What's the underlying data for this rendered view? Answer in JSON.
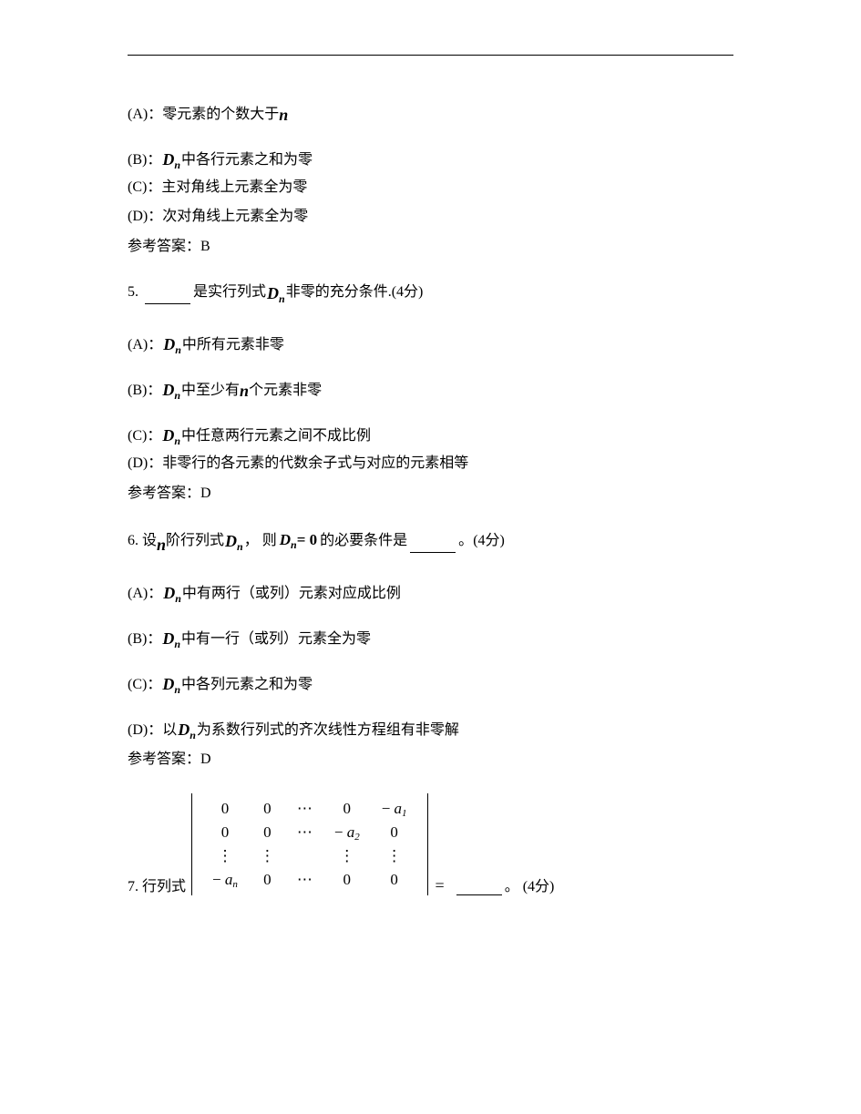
{
  "colors": {
    "text": "#000000",
    "bg": "#ffffff",
    "rule": "#000000"
  },
  "fontsize": {
    "body": 16,
    "math": 18,
    "sub": 12
  },
  "q4_continued": {
    "A": {
      "label": "(A)：",
      "before": "零元素的个数大于 ",
      "sym": "n"
    },
    "B": {
      "label": "(B)：",
      "sym": "D",
      "sub": "n",
      "after": " 中各行元素之和为零"
    },
    "C": {
      "label": "(C)：",
      "text": "主对角线上元素全为零"
    },
    "D": {
      "label": "(D)：",
      "text": "次对角线上元素全为零"
    },
    "answer_label": "参考答案：",
    "answer": "B"
  },
  "q5": {
    "num": "5. ",
    "before_blank": "",
    "mid1": "是实行列式",
    "sym": "D",
    "sub": "n",
    "mid2": " 非零的充分条件.",
    "points": "(4分)",
    "A": {
      "label": "(A)：",
      "sym": "D",
      "sub": "n",
      "after": " 中所有元素非零"
    },
    "B": {
      "label": "(B)：",
      "sym": "D",
      "sub": "n",
      "mid": " 中至少有 ",
      "sym2": "n",
      "after": " 个元素非零"
    },
    "C": {
      "label": "(C)：",
      "sym": "D",
      "sub": "n",
      "after": " 中任意两行元素之间不成比例"
    },
    "D": {
      "label": "(D)：",
      "text": "非零行的各元素的代数余子式与对应的元素相等"
    },
    "answer_label": "参考答案：",
    "answer": "D"
  },
  "q6": {
    "num": "6. ",
    "t1": "设 ",
    "sym_n": "n",
    "t2": " 阶行列式",
    "symD": "D",
    "subn": "n",
    "t3": "， 则",
    "eq_lhs_sym": "D",
    "eq_lhs_sub": "n",
    "eq_rhs": " = 0",
    "t4": " 的必要条件是",
    "t5": "。",
    "points": "(4分)",
    "A": {
      "label": "(A)：",
      "sym": "D",
      "sub": "n",
      "after": " 中有两行（或列）元素对应成比例"
    },
    "B": {
      "label": "(B)：",
      "sym": "D",
      "sub": "n",
      "after": " 中有一行（或列）元素全为零"
    },
    "C": {
      "label": "(C)：",
      "sym": "D",
      "sub": "n",
      "after": " 中各列元素之和为零"
    },
    "D": {
      "label": "(D)：",
      "pre": "以",
      "sym": "D",
      "sub": "n",
      "after": " 为系数行列式的齐次线性方程组有非零解"
    },
    "answer_label": "参考答案：",
    "answer": "D"
  },
  "q7": {
    "num": "7. ",
    "t1": "行列式",
    "matrix": {
      "rows": [
        [
          "0",
          "0",
          "⋯",
          "0",
          "-a₁|−a<sub>1</sub>"
        ],
        [
          "0",
          "0",
          "⋯",
          "-a₂|−a<sub>2</sub>",
          "0"
        ],
        [
          "⋮",
          "⋮",
          "",
          "⋮",
          "⋮"
        ],
        [
          "-aₙ|−a<sub>n</sub>",
          "0",
          "⋯",
          "0",
          "0"
        ]
      ],
      "display": [
        [
          {
            "t": "0"
          },
          {
            "t": "0"
          },
          {
            "t": "⋯"
          },
          {
            "t": "0"
          },
          {
            "html": "− <span class='it'>a</span><span class='s'>1</span>"
          }
        ],
        [
          {
            "t": "0"
          },
          {
            "t": "0"
          },
          {
            "t": "⋯"
          },
          {
            "html": "− <span class='it'>a</span><span class='s'>2</span>"
          },
          {
            "t": "0"
          }
        ],
        [
          {
            "t": "⋮"
          },
          {
            "t": "⋮"
          },
          {
            "t": ""
          },
          {
            "t": "⋮"
          },
          {
            "t": "⋮"
          }
        ],
        [
          {
            "html": "− <span class='it'>a</span><span class='s'>n</span>"
          },
          {
            "t": "0"
          },
          {
            "t": "⋯"
          },
          {
            "t": "0"
          },
          {
            "t": "0"
          }
        ]
      ]
    },
    "eqsign": "=",
    "t2": "。",
    "points": "(4分)"
  }
}
